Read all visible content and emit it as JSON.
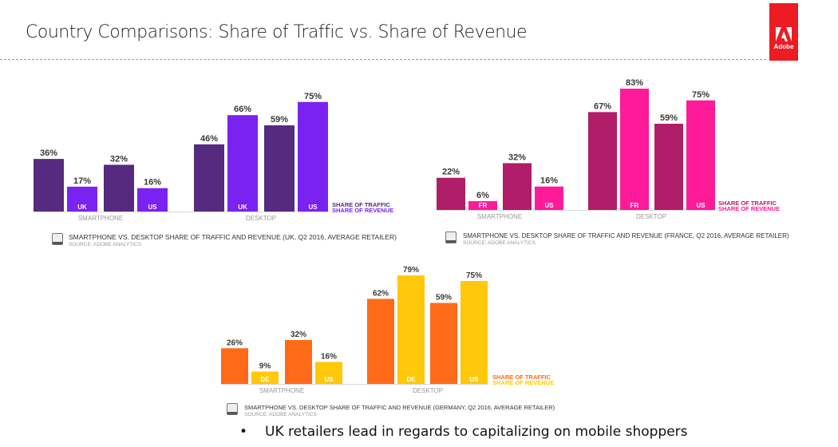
{
  "header": {
    "title": "Country Comparisons: Share of Traffic vs. Share of Revenue",
    "logo_text": "Adobe",
    "logo_color": "#ed1c24"
  },
  "chart_data": [
    {
      "type": "bar",
      "country": "UK",
      "groups": [
        "SMARTPHONE",
        "DESKTOP"
      ],
      "categories": [
        "UK",
        "US",
        "UK",
        "US"
      ],
      "series": [
        {
          "name": "SHARE OF TRAFFIC",
          "color": "#552a7f",
          "values": [
            36,
            32,
            46,
            59
          ]
        },
        {
          "name": "SHARE OF REVENUE",
          "color": "#7a22f0",
          "values": [
            17,
            16,
            66,
            75
          ]
        }
      ],
      "legend": "bottom-right",
      "ylim": [
        0,
        100
      ],
      "caption": "SMARTPHONE VS. DESKTOP SHARE OF TRAFFIC AND REVENUE (UK, Q2 2016, AVERAGE RETAILER)",
      "source": "SOURCE: ADOBE ANALYTICS"
    },
    {
      "type": "bar",
      "country": "FR",
      "groups": [
        "SMARTPHONE",
        "DESKTOP"
      ],
      "categories": [
        "FR",
        "US",
        "FR",
        "US"
      ],
      "series": [
        {
          "name": "SHARE OF TRAFFIC",
          "color": "#b01d68",
          "values": [
            22,
            32,
            67,
            59
          ]
        },
        {
          "name": "SHARE OF REVENUE",
          "color": "#fe1a99",
          "values": [
            6,
            16,
            83,
            75
          ]
        }
      ],
      "legend": "bottom-right",
      "ylim": [
        0,
        100
      ],
      "caption": "SMARTPHONE VS. DESKTOP SHARE OF TRAFFIC AND REVENUE (FRANCE, Q2 2016, AVERAGE RETAILER)",
      "source": "SOURCE: ADOBE ANALYTICS"
    },
    {
      "type": "bar",
      "country": "DE",
      "groups": [
        "SMARTPHONE",
        "DESKTOP"
      ],
      "categories": [
        "DE",
        "US",
        "DE",
        "US"
      ],
      "series": [
        {
          "name": "SHARE OF TRAFFIC",
          "color": "#ff6a19",
          "values": [
            26,
            32,
            62,
            59
          ]
        },
        {
          "name": "SHARE OF REVENUE",
          "color": "#ffc80a",
          "values": [
            9,
            16,
            79,
            75
          ]
        }
      ],
      "legend": "bottom-right",
      "ylim": [
        0,
        100
      ],
      "caption": "SMARTPHONE VS. DESKTOP SHARE OF TRAFFIC AND REVENUE (GERMANY, Q2 2016, AVERAGE RETAILER)",
      "source": "SOURCE: ADOBE ANALYTICS"
    }
  ],
  "bullet": {
    "symbol": "•",
    "text": "UK retailers lead in regards to capitalizing on mobile shoppers"
  }
}
